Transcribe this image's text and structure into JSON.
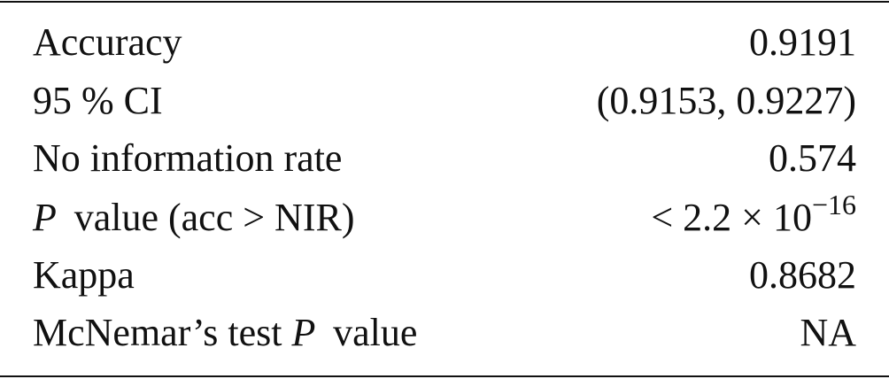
{
  "table": {
    "rows": [
      [
        "Accuracy",
        "0.9191"
      ],
      [
        "95 % CI",
        "(0.9153, 0.9227)"
      ],
      [
        "No information rate",
        "0.574"
      ],
      [
        [
          "P",
          "value (acc > NIR)"
        ],
        [
          "< 2.2 × 10",
          "−16"
        ]
      ],
      [
        "Kappa",
        "0.8682"
      ],
      [
        [
          "McNemar’s test",
          "P",
          "value"
        ],
        "NA"
      ]
    ]
  }
}
